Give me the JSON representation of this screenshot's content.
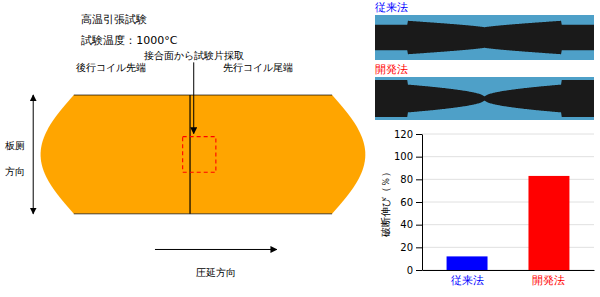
{
  "chart_data": {
    "type": "bar",
    "categories": [
      "従来法",
      "開発法"
    ],
    "values": [
      12,
      83
    ],
    "colors": [
      "#0000ff",
      "#ff0000"
    ],
    "ylabel": "破断伸び（％）",
    "ylim": [
      0,
      120
    ],
    "yticks": [
      0,
      20,
      40,
      60,
      80,
      100,
      120
    ],
    "grid": true,
    "annotations": [
      "高温引張試験",
      "試験温度：1000°C",
      "接合面から試験片採取",
      "後行コイル先端",
      "先行コイル尾端",
      "板厕",
      "方向",
      "圧延方向"
    ]
  }
}
